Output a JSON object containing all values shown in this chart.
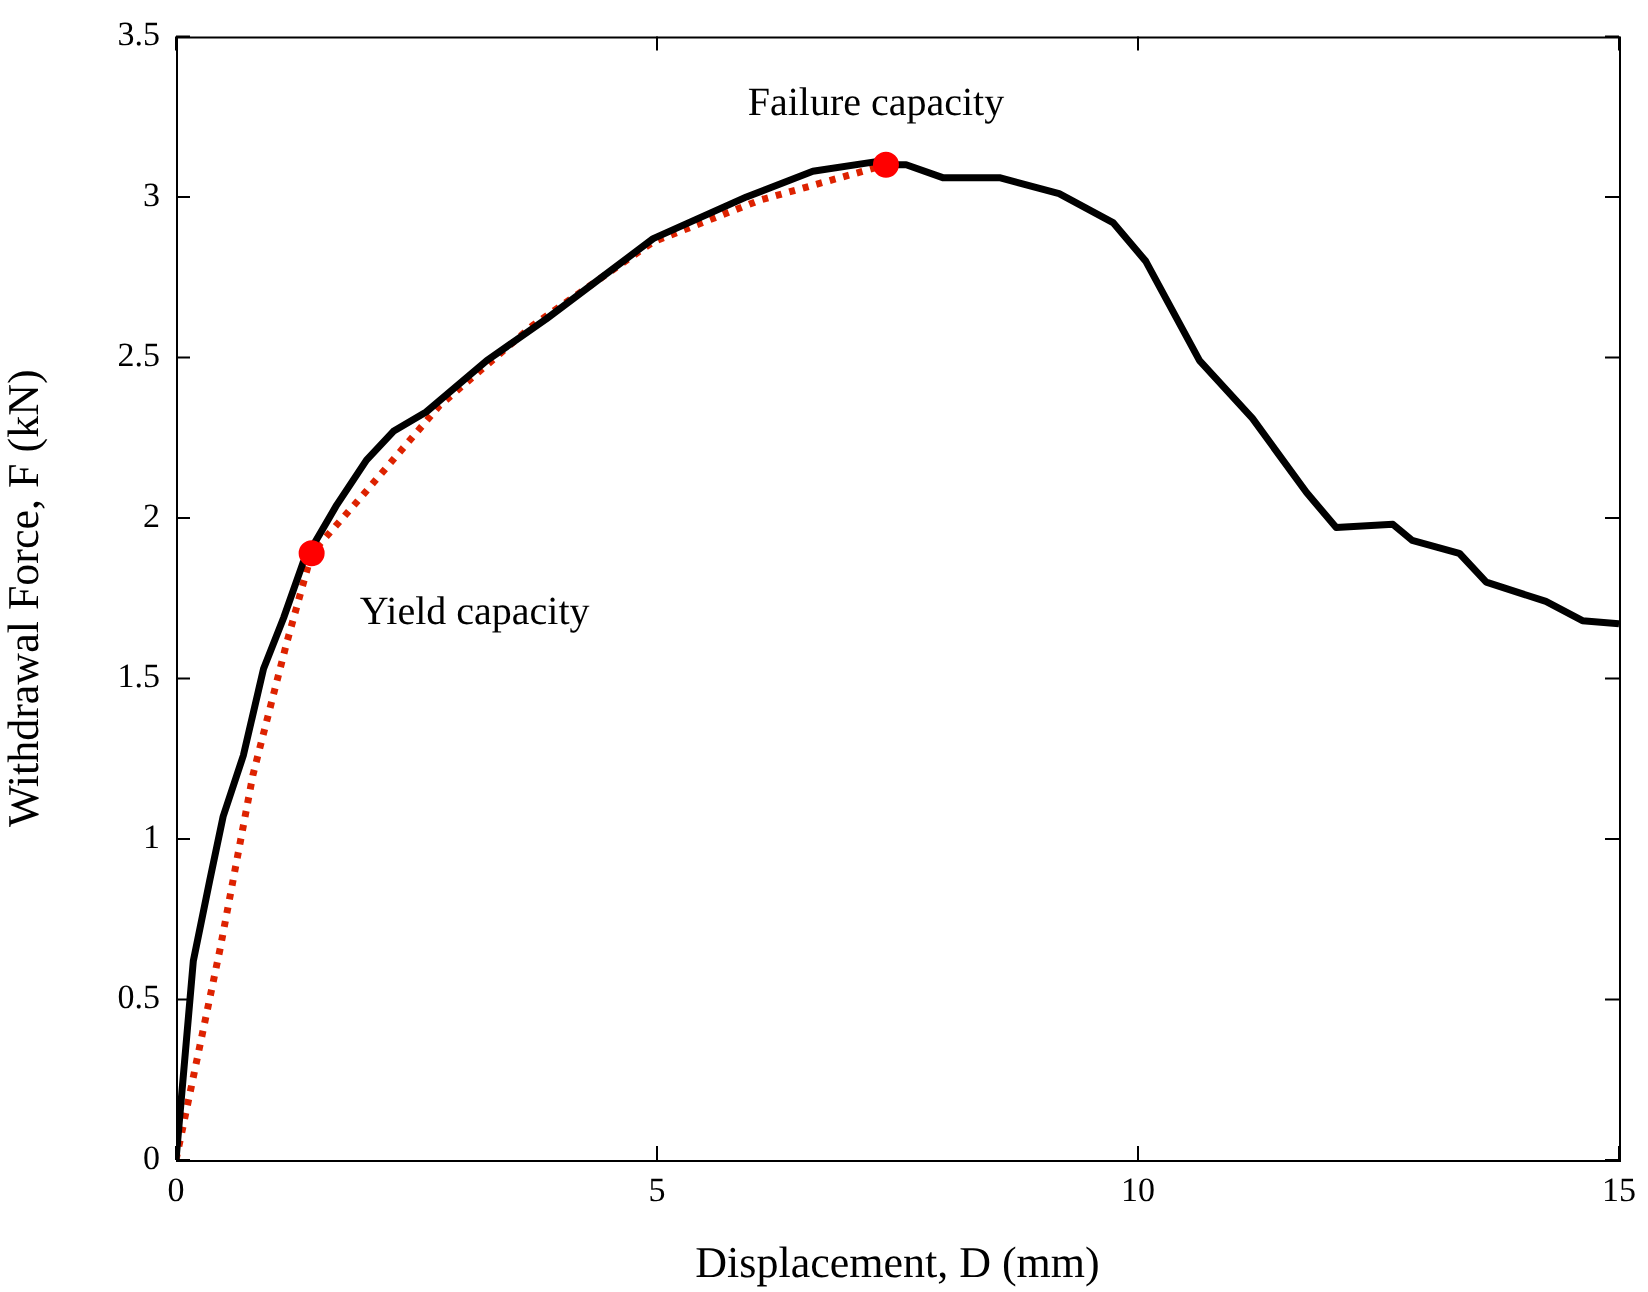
{
  "chart_data": {
    "type": "line",
    "xlabel": "Displacement, D (mm)",
    "ylabel": "Withdrawal Force, F (kN)",
    "xlim": [
      0,
      15
    ],
    "ylim": [
      0,
      3.5
    ],
    "xticks": [
      0,
      5,
      10,
      15
    ],
    "yticks": [
      0,
      0.5,
      1,
      1.5,
      2,
      2.5,
      3,
      3.5
    ],
    "grid": false,
    "legend": false,
    "series": [
      {
        "color": "#000000",
        "marker": "none",
        "line_style": "solid",
        "x": [
          0,
          0.18,
          0.35,
          0.49,
          0.7,
          0.91,
          1.12,
          1.32,
          1.67,
          1.98,
          2.26,
          2.6,
          3.23,
          3.85,
          4.96,
          5.93,
          6.62,
          7.28,
          7.38,
          7.59,
          7.97,
          8.56,
          9.18,
          9.74,
          10.08,
          10.64,
          11.19,
          11.75,
          12.06,
          12.65,
          12.85,
          13.34,
          13.62,
          14.24,
          14.62,
          15
        ],
        "values": [
          0,
          0.62,
          0.87,
          1.07,
          1.26,
          1.53,
          1.69,
          1.86,
          2.04,
          2.18,
          2.27,
          2.33,
          2.49,
          2.62,
          2.87,
          3,
          3.08,
          3.11,
          3.1,
          3.1,
          3.06,
          3.06,
          3.01,
          2.92,
          2.8,
          2.49,
          2.31,
          2.08,
          1.97,
          1.98,
          1.93,
          1.89,
          1.8,
          1.74,
          1.68,
          1.67
        ]
      },
      {
        "color": "#dd2200",
        "marker": "none",
        "line_style": "dotted",
        "x": [
          0,
          0.46,
          0.8,
          1.15,
          1.41,
          1.91,
          2.74,
          3.71,
          4.96,
          6.07,
          7.38
        ],
        "values": [
          0,
          0.66,
          1.2,
          1.61,
          1.89,
          2.06,
          2.35,
          2.6,
          2.86,
          2.99,
          3.1
        ]
      },
      {
        "type": "scatter",
        "color": "#ff0000",
        "marker": "circle",
        "x": [
          1.41,
          7.38
        ],
        "values": [
          1.89,
          3.1
        ]
      }
    ],
    "annotations": [
      {
        "text": "Failure capacity",
        "x": 7.38,
        "y": 3.1
      },
      {
        "text": "Yield capacity",
        "x": 1.41,
        "y": 1.89
      }
    ]
  }
}
